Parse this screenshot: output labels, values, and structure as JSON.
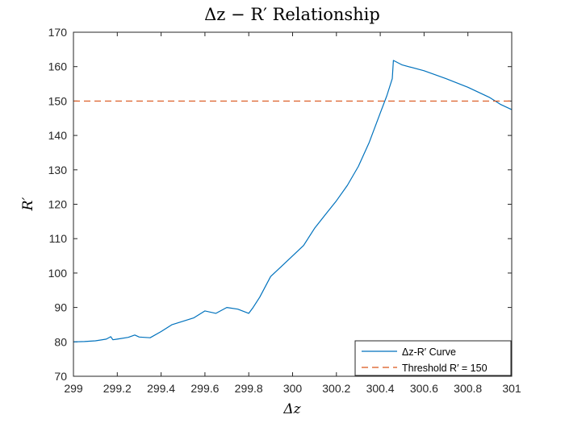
{
  "chart_data": {
    "type": "line",
    "title": "Δz − R′ Relationship",
    "xlabel": "Δz",
    "ylabel": "R′",
    "xlim": [
      299,
      301
    ],
    "ylim": [
      70,
      170
    ],
    "xticks": [
      299,
      299.2,
      299.4,
      299.6,
      299.8,
      300,
      300.2,
      300.4,
      300.6,
      300.8,
      301
    ],
    "xtick_labels": [
      "299",
      "299.2",
      "299.4",
      "299.6",
      "299.8",
      "300",
      "300.2",
      "300.4",
      "300.6",
      "300.8",
      "301"
    ],
    "yticks": [
      70,
      80,
      90,
      100,
      110,
      120,
      130,
      140,
      150,
      160,
      170
    ],
    "ytick_labels": [
      "70",
      "80",
      "90",
      "100",
      "110",
      "120",
      "130",
      "140",
      "150",
      "160",
      "170"
    ],
    "grid": false,
    "legend_position": "bottom-right",
    "series": [
      {
        "name": "Δz-R′ Curve",
        "color": "#0072BD",
        "style": "solid",
        "x": [
          299.0,
          299.05,
          299.1,
          299.15,
          299.17,
          299.18,
          299.2,
          299.25,
          299.28,
          299.3,
          299.35,
          299.4,
          299.45,
          299.5,
          299.55,
          299.6,
          299.65,
          299.7,
          299.75,
          299.8,
          299.82,
          299.85,
          299.9,
          299.95,
          300.0,
          300.05,
          300.1,
          300.15,
          300.2,
          300.25,
          300.3,
          300.35,
          300.4,
          300.43,
          300.455,
          300.46,
          300.5,
          300.6,
          300.7,
          300.8,
          300.9,
          300.95,
          301.0
        ],
        "y": [
          80.0,
          80.1,
          80.3,
          80.8,
          81.5,
          80.6,
          80.8,
          81.3,
          82.0,
          81.4,
          81.2,
          83.0,
          85.0,
          86.0,
          87.0,
          89.0,
          88.3,
          90.0,
          89.5,
          88.3,
          90.0,
          93.0,
          99.0,
          102.0,
          105.0,
          108.0,
          113.0,
          117.0,
          121.0,
          125.5,
          131.0,
          138.0,
          146.5,
          151.5,
          156.5,
          161.8,
          160.5,
          158.8,
          156.5,
          154.0,
          151.0,
          149.0,
          147.5
        ]
      },
      {
        "name": "Threshold R′ = 150",
        "color": "#D95319",
        "style": "dashed",
        "x": [
          299,
          301
        ],
        "y": [
          150,
          150
        ]
      }
    ]
  }
}
